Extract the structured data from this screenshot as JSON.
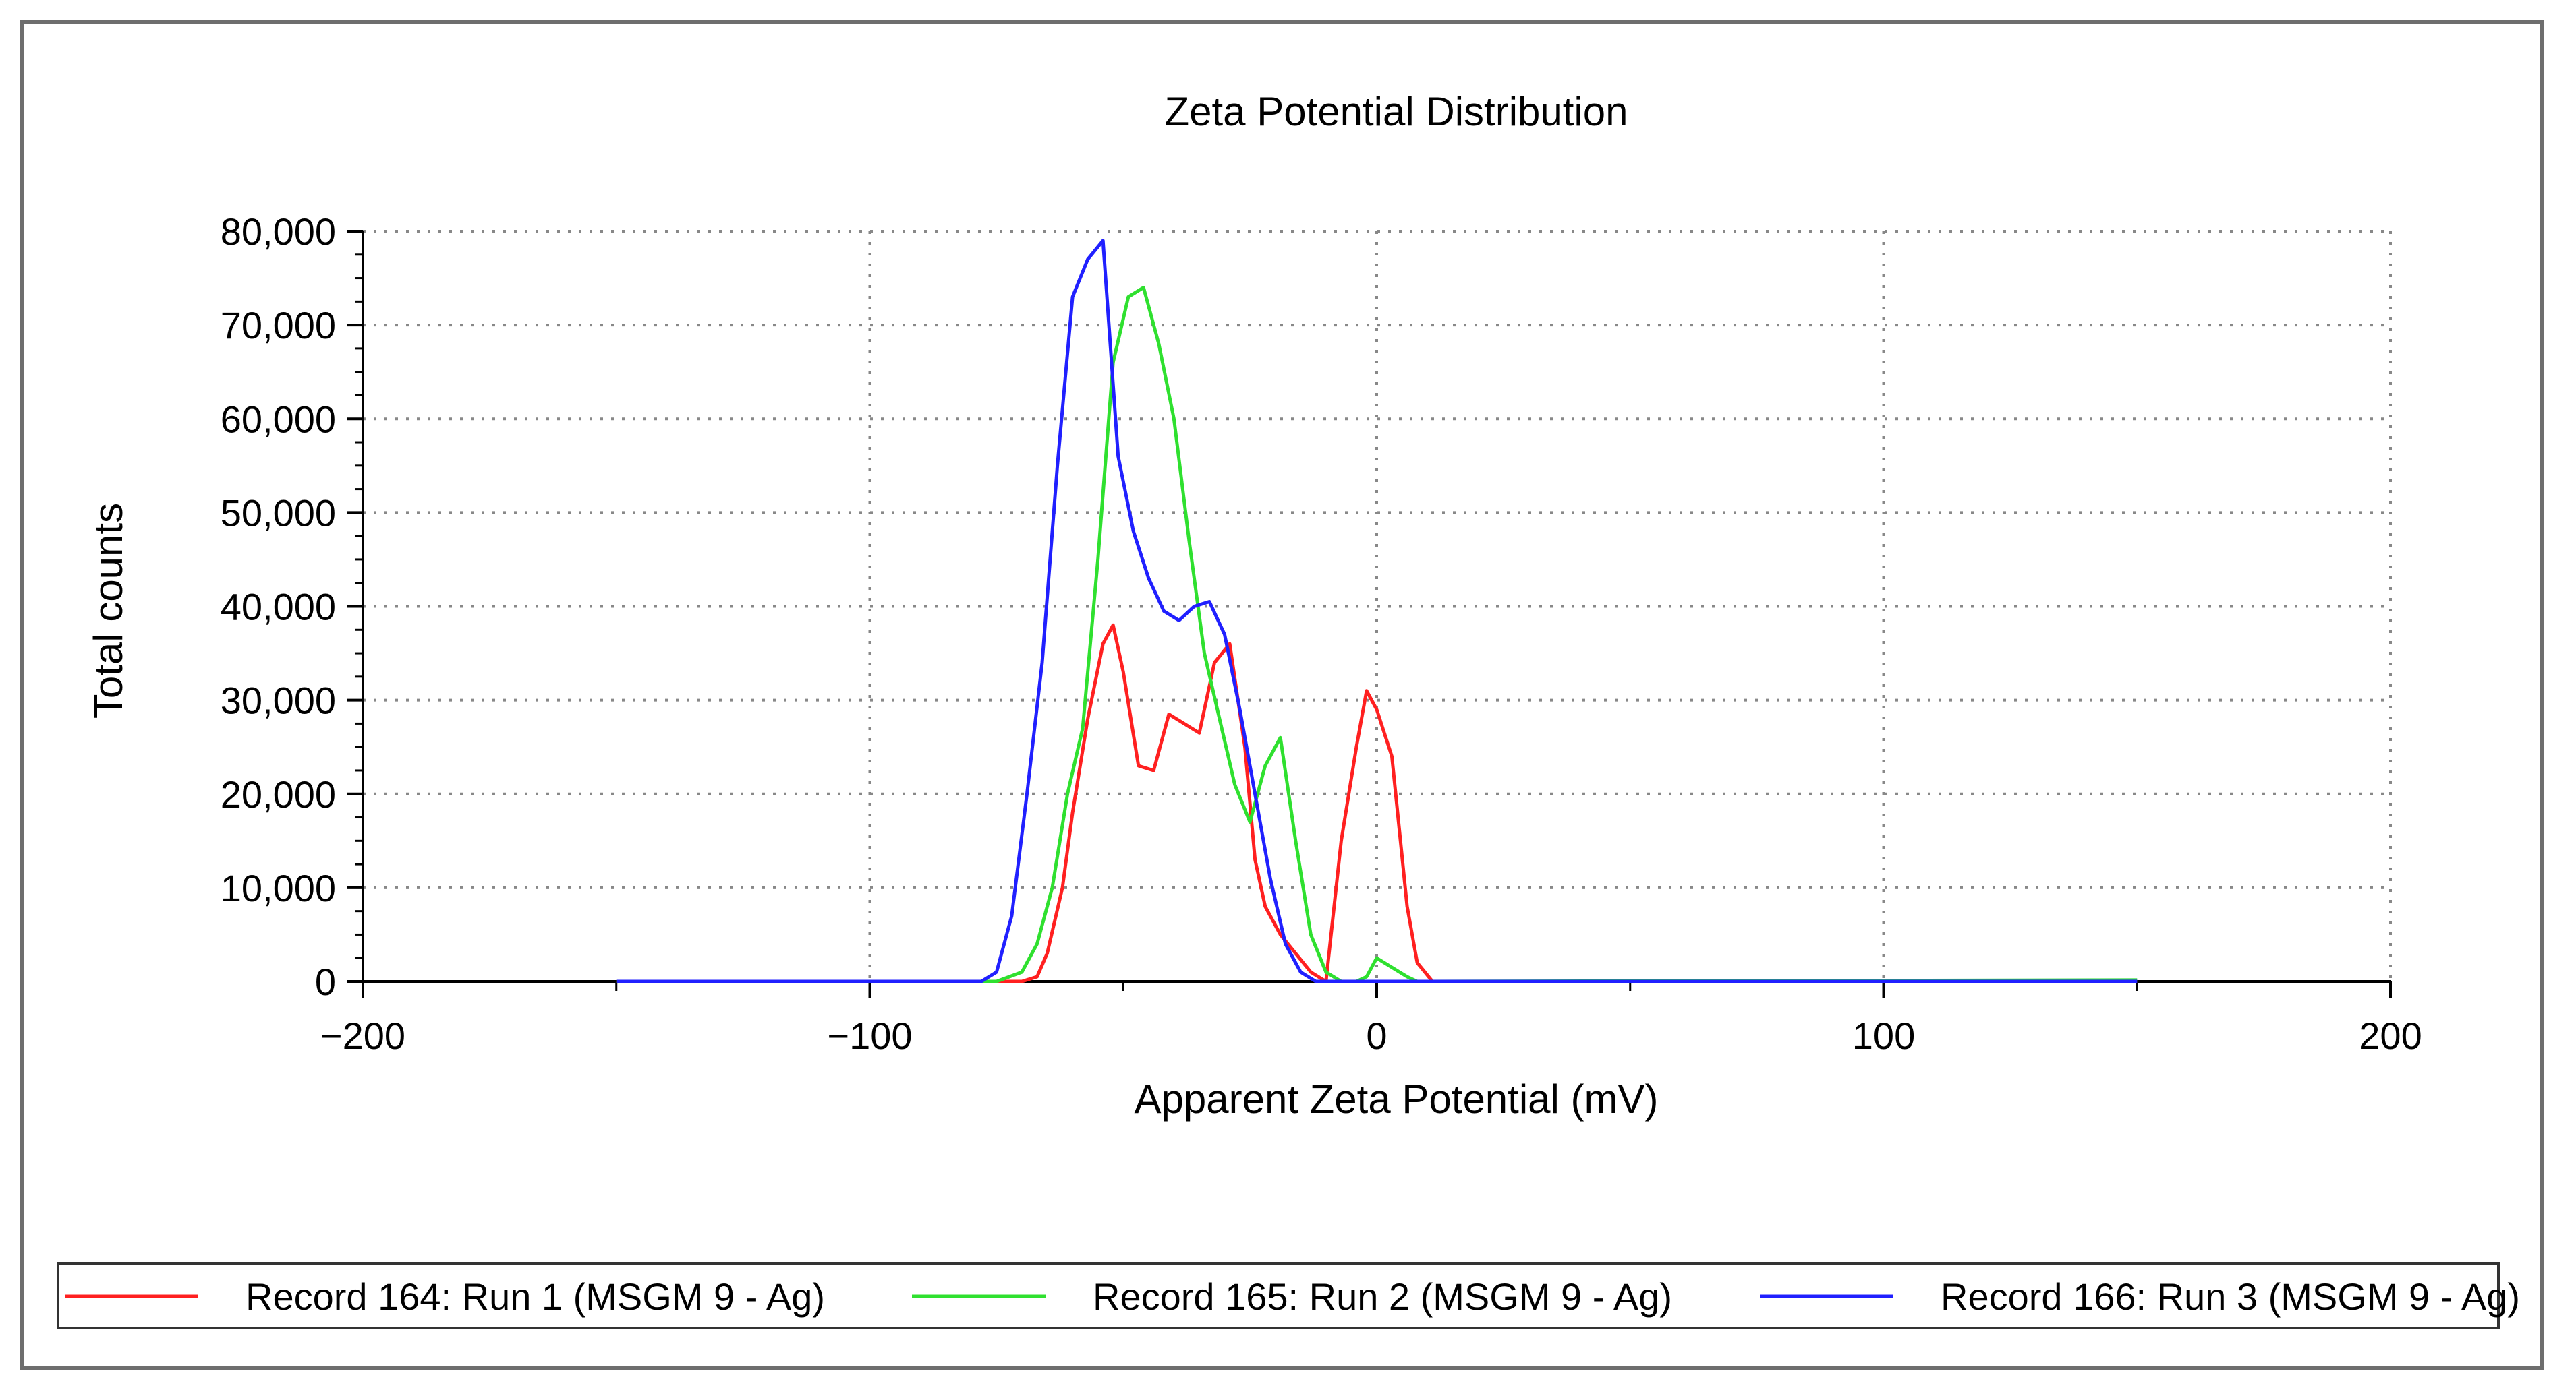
{
  "chart_data": {
    "type": "line",
    "title": "Zeta Potential Distribution",
    "xlabel": "Apparent Zeta Potential (mV)",
    "ylabel": "Total counts",
    "xlim": [
      -200,
      200
    ],
    "ylim": [
      0,
      80000
    ],
    "xticks": [
      -200,
      -100,
      0,
      100,
      200
    ],
    "xtick_labels": [
      "−200",
      "−100",
      "0",
      "100",
      "200"
    ],
    "yticks": [
      0,
      10000,
      20000,
      30000,
      40000,
      50000,
      60000,
      70000,
      80000
    ],
    "ytick_labels": [
      "0",
      "10,000",
      "20,000",
      "30,000",
      "40,000",
      "50,000",
      "60,000",
      "70,000",
      "80,000"
    ],
    "grid": true,
    "legend_position": "bottom",
    "series": [
      {
        "name": "Record 164: Run 1 (MSGM 9 - Ag)",
        "color": "#ff2020",
        "x": [
          -150,
          -70,
          -67,
          -65,
          -62,
          -60,
          -57,
          -54,
          -52,
          -50,
          -47,
          -44,
          -41,
          -38,
          -35,
          -32,
          -29,
          -26,
          -24,
          -22,
          -19,
          -16,
          -13,
          -10,
          -7,
          -4,
          -2,
          0,
          3,
          6,
          8,
          11,
          150
        ],
        "y": [
          0,
          0,
          500,
          3000,
          10000,
          18000,
          28000,
          36000,
          38000,
          33000,
          23000,
          22500,
          28500,
          27500,
          26500,
          34000,
          36000,
          25000,
          13000,
          8000,
          5000,
          3000,
          1000,
          0,
          15000,
          25000,
          31000,
          29000,
          24000,
          8000,
          2000,
          0,
          0
        ]
      },
      {
        "name": "Record 165: Run 2 (MSGM 9 - Ag)",
        "color": "#2fe02f",
        "x": [
          -150,
          -75,
          -70,
          -67,
          -64,
          -61,
          -58,
          -55,
          -52,
          -49,
          -46,
          -43,
          -40,
          -37,
          -34,
          -31,
          -28,
          -25,
          -22,
          -19,
          -16,
          -13,
          -10,
          -7,
          -4,
          -2,
          0,
          3,
          6,
          8,
          10,
          150
        ],
        "y": [
          0,
          0,
          1000,
          4000,
          10000,
          20000,
          27000,
          45000,
          66000,
          73000,
          74000,
          68000,
          60000,
          47000,
          35000,
          28000,
          21000,
          17000,
          23000,
          26000,
          15000,
          5000,
          1000,
          0,
          0,
          500,
          2500,
          1500,
          500,
          0,
          0,
          150
        ]
      },
      {
        "name": "Record 166: Run 3 (MSGM 9 - Ag)",
        "color": "#2020ff",
        "x": [
          -150,
          -78,
          -75,
          -72,
          -69,
          -66,
          -63,
          -60,
          -57,
          -54,
          -51,
          -48,
          -45,
          -42,
          -39,
          -36,
          -33,
          -30,
          -27,
          -24,
          -21,
          -18,
          -15,
          -12,
          -10,
          150
        ],
        "y": [
          0,
          0,
          1000,
          7000,
          20000,
          34000,
          55000,
          73000,
          77000,
          79000,
          56000,
          48000,
          43000,
          39500,
          38500,
          40000,
          40500,
          37000,
          29000,
          20000,
          11000,
          4000,
          1000,
          0,
          0,
          0
        ]
      }
    ]
  }
}
